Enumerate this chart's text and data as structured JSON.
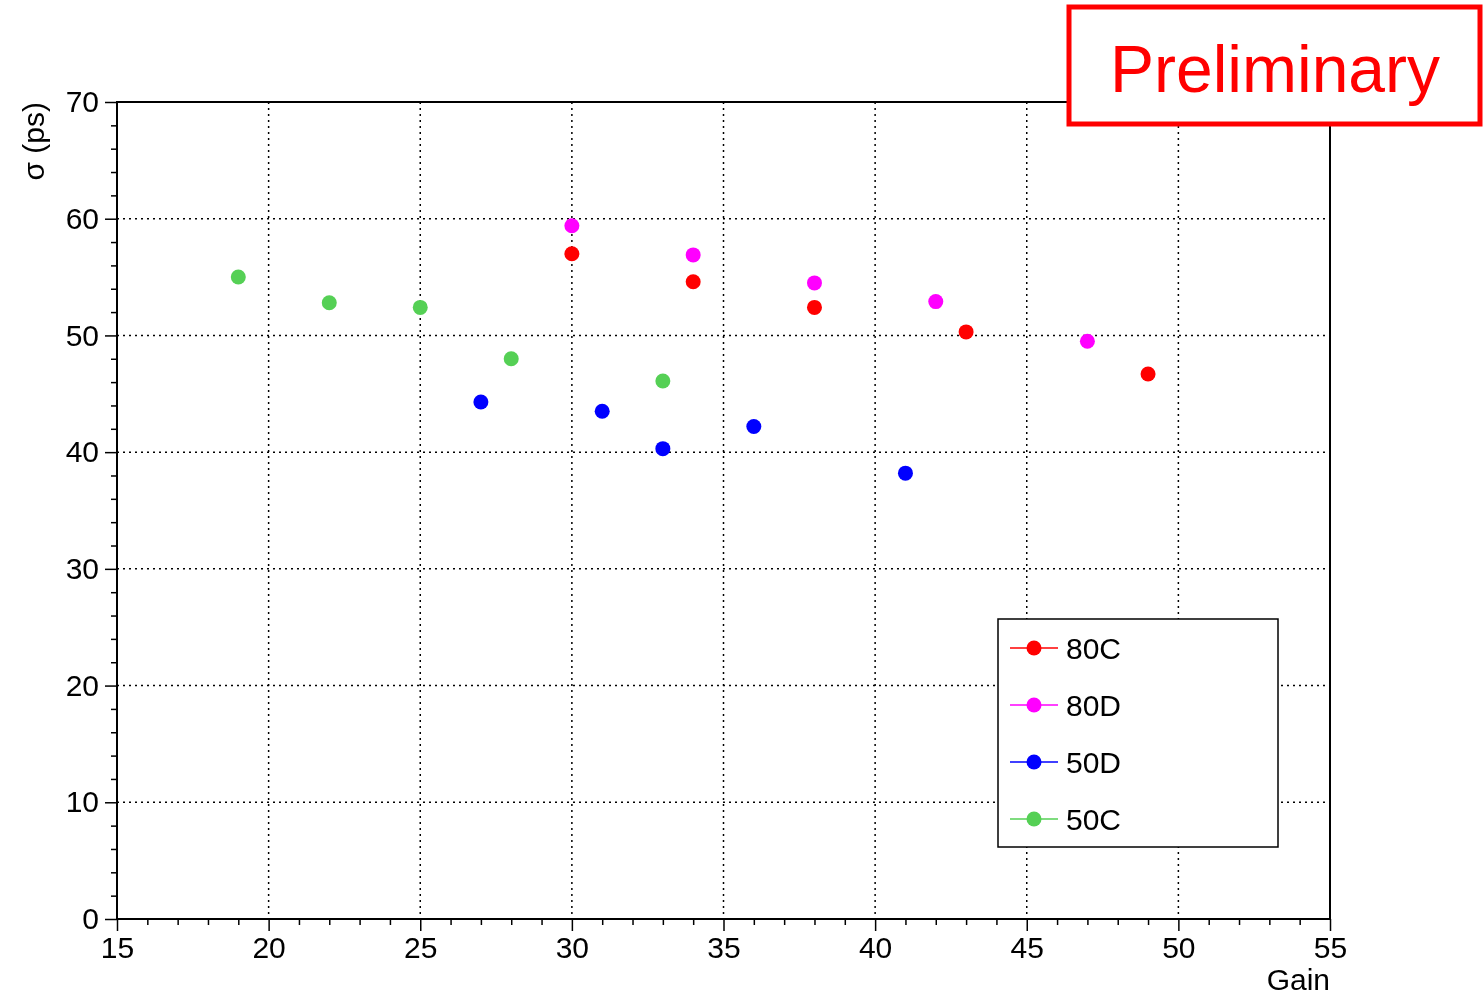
{
  "chart_data": {
    "type": "scatter",
    "xlabel": "Gain",
    "ylabel": "σ (ps)",
    "annotations": [
      "Preliminary"
    ],
    "xlim": [
      15,
      55
    ],
    "ylim": [
      0,
      70
    ],
    "xticks": [
      15,
      {
        "value": 16,
        "label": null
      },
      {
        "value": 17,
        "label": null
      },
      {
        "value": 18,
        "label": null
      },
      {
        "value": 19,
        "label": null
      },
      20,
      {
        "value": 21,
        "label": null
      },
      {
        "value": 22,
        "label": null
      },
      {
        "value": 23,
        "label": null
      },
      {
        "value": 24,
        "label": null
      },
      25,
      {
        "value": 26,
        "label": null
      },
      {
        "value": 27,
        "label": null
      },
      {
        "value": 28,
        "label": null
      },
      {
        "value": 29,
        "label": null
      },
      30,
      {
        "value": 31,
        "label": null
      },
      {
        "value": 32,
        "label": null
      },
      {
        "value": 33,
        "label": null
      },
      {
        "value": 34,
        "label": null
      },
      35,
      {
        "value": 36,
        "label": null
      },
      {
        "value": 37,
        "label": null
      },
      {
        "value": 38,
        "label": null
      },
      {
        "value": 39,
        "label": null
      },
      40,
      {
        "value": 41,
        "label": null
      },
      {
        "value": 42,
        "label": null
      },
      {
        "value": 43,
        "label": null
      },
      {
        "value": 44,
        "label": null
      },
      45,
      {
        "value": 46,
        "label": null
      },
      {
        "value": 47,
        "label": null
      },
      {
        "value": 48,
        "label": null
      },
      {
        "value": 49,
        "label": null
      },
      50,
      {
        "value": 51,
        "label": null
      },
      {
        "value": 52,
        "label": null
      },
      {
        "value": 53,
        "label": null
      },
      {
        "value": 54,
        "label": null
      },
      55
    ],
    "yticks": [
      0,
      {
        "value": 2,
        "label": null
      },
      {
        "value": 4,
        "label": null
      },
      {
        "value": 6,
        "label": null
      },
      {
        "value": 8,
        "label": null
      },
      10,
      {
        "value": 12,
        "label": null
      },
      {
        "value": 14,
        "label": null
      },
      {
        "value": 16,
        "label": null
      },
      {
        "value": 18,
        "label": null
      },
      20,
      {
        "value": 22,
        "label": null
      },
      {
        "value": 24,
        "label": null
      },
      {
        "value": 26,
        "label": null
      },
      {
        "value": 28,
        "label": null
      },
      30,
      {
        "value": 32,
        "label": null
      },
      {
        "value": 34,
        "label": null
      },
      {
        "value": 36,
        "label": null
      },
      {
        "value": 38,
        "label": null
      },
      40,
      {
        "value": 42,
        "label": null
      },
      {
        "value": 44,
        "label": null
      },
      {
        "value": 46,
        "label": null
      },
      {
        "value": 48,
        "label": null
      },
      50,
      {
        "value": 52,
        "label": null
      },
      {
        "value": 54,
        "label": null
      },
      {
        "value": 56,
        "label": null
      },
      {
        "value": 58,
        "label": null
      },
      60,
      {
        "value": 62,
        "label": null
      },
      {
        "value": 64,
        "label": null
      },
      {
        "value": 66,
        "label": null
      },
      {
        "value": 68,
        "label": null
      },
      70
    ],
    "grid": true,
    "legend": "bottom right",
    "marker": "circle",
    "series": [
      {
        "name": "80C",
        "color": "#ff0000",
        "x": [
          30,
          34,
          38,
          43,
          49
        ],
        "values": [
          57.0,
          54.6,
          52.4,
          50.3,
          46.7
        ]
      },
      {
        "name": "80D",
        "color": "#ff00ff",
        "x": [
          30,
          34,
          38,
          42,
          47
        ],
        "values": [
          59.4,
          56.9,
          54.5,
          52.9,
          49.5
        ]
      },
      {
        "name": "50D",
        "color": "#0000ff",
        "x": [
          27,
          31,
          33,
          36,
          41
        ],
        "values": [
          44.3,
          43.5,
          40.3,
          42.2,
          38.2
        ]
      },
      {
        "name": "50C",
        "color": "#55d055",
        "x": [
          19,
          22,
          25,
          28,
          33
        ],
        "values": [
          55.0,
          52.8,
          52.4,
          48.0,
          46.1
        ]
      }
    ]
  }
}
